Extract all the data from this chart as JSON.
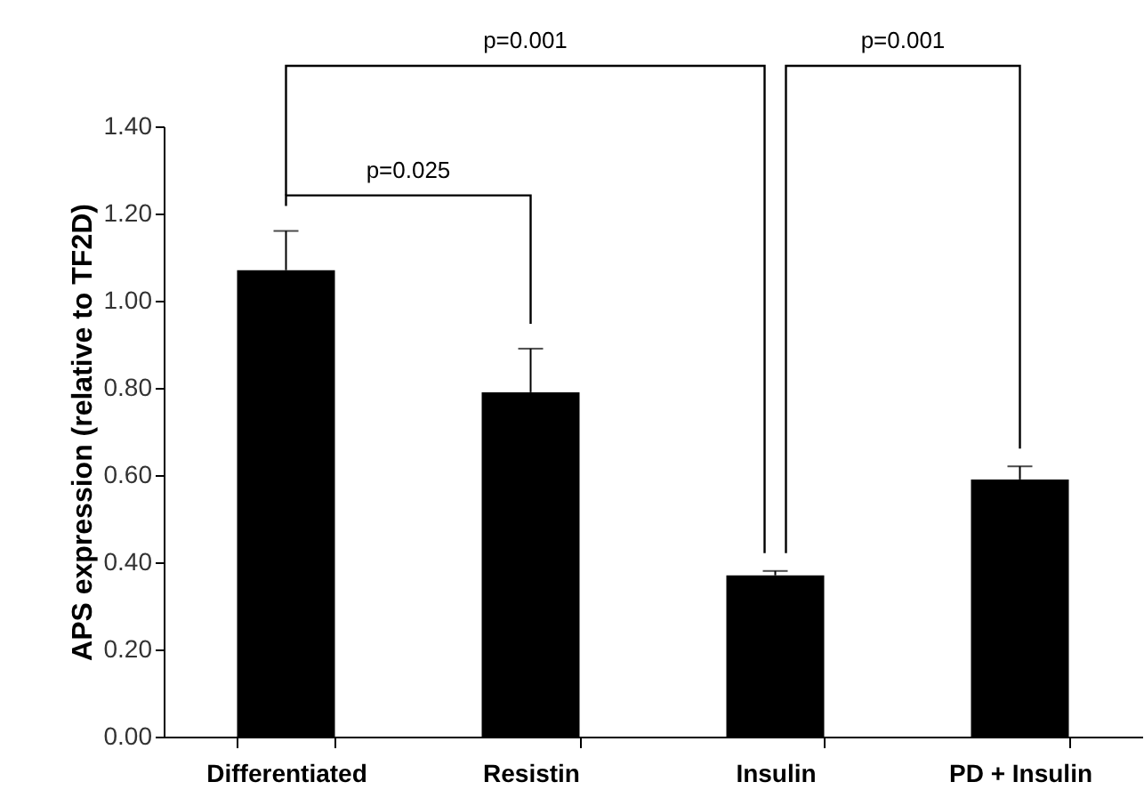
{
  "chart_data": {
    "type": "bar",
    "ylabel": "APS expression (relative to TF2D)",
    "categories": [
      "Differentiated",
      "Resistin",
      "Insulin",
      "PD + Insulin"
    ],
    "values": [
      1.07,
      0.79,
      0.37,
      0.59
    ],
    "color": "#000000",
    "errors": [
      [
        1.07,
        1.16
      ],
      [
        0.79,
        0.89
      ],
      [
        0.37,
        0.38
      ],
      [
        0.59,
        0.62
      ]
    ],
    "ylim": [
      0,
      1.4
    ],
    "yticks": [
      {
        "value": 0,
        "label": "0.00"
      },
      {
        "value": 0.2,
        "label": "0.20"
      },
      {
        "value": 0.4,
        "label": "0.40"
      },
      {
        "value": 0.6,
        "label": "0.60"
      },
      {
        "value": 0.8,
        "label": "0.80"
      },
      {
        "value": 1.0,
        "label": "1.00"
      },
      {
        "value": 1.2,
        "label": "1.20"
      },
      {
        "value": 1.4,
        "label": "1.40"
      }
    ],
    "grid": false,
    "annotations": [
      "p=0.001",
      "p=0.025",
      "p=0.001"
    ]
  }
}
